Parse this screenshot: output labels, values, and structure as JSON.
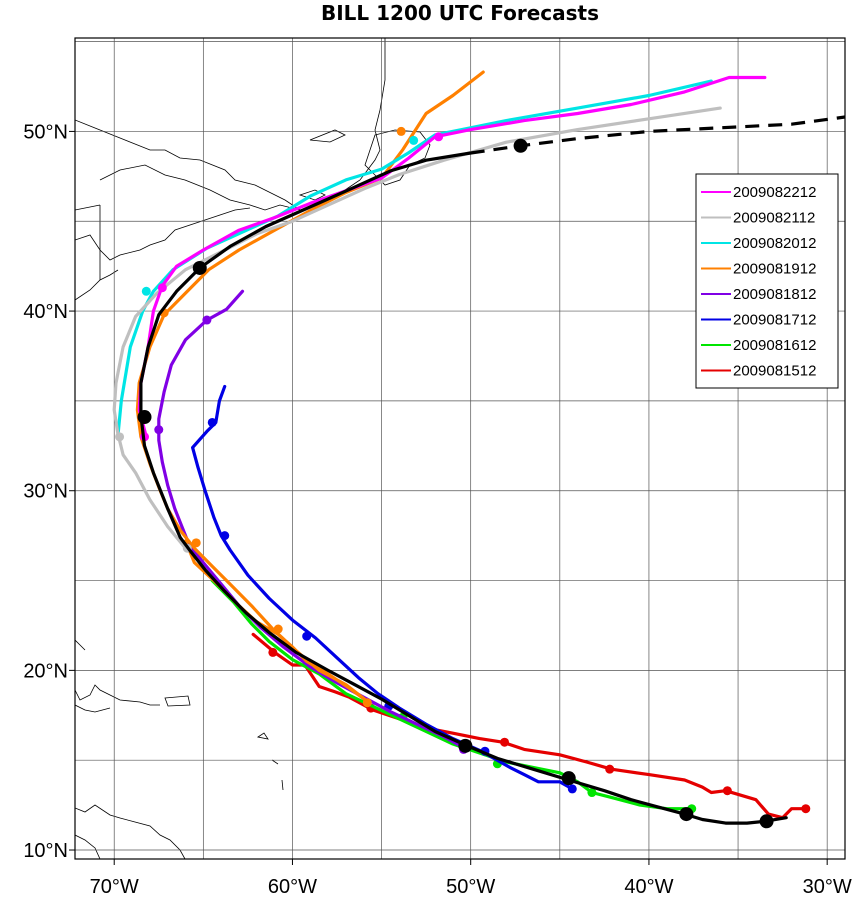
{
  "title": "BILL 1200 UTC Forecasts",
  "chart_data": {
    "type": "map-tracks",
    "title": "BILL 1200 UTC Forecasts",
    "lon_ticks": [
      {
        "lon": -70,
        "label": "70°W"
      },
      {
        "lon": -60,
        "label": "60°W"
      },
      {
        "lon": -50,
        "label": "50°W"
      },
      {
        "lon": -40,
        "label": "40°W"
      },
      {
        "lon": -30,
        "label": "30°W"
      }
    ],
    "lat_ticks": [
      {
        "lat": 10,
        "label": "10°N"
      },
      {
        "lat": 20,
        "label": "20°N"
      },
      {
        "lat": 30,
        "label": "30°N"
      },
      {
        "lat": 40,
        "label": "40°N"
      },
      {
        "lat": 50,
        "label": "50°N"
      }
    ],
    "lon_range": [
      -72.2,
      -29.0
    ],
    "lat_range": [
      9.5,
      55.2
    ],
    "grid": true,
    "grid_spacing_deg": 5,
    "legend_position": "right",
    "best_track": {
      "color": "#000000",
      "points": [
        [
          -32.3,
          11.8
        ],
        [
          -33.5,
          11.6
        ],
        [
          -34.5,
          11.5
        ],
        [
          -35.7,
          11.5
        ],
        [
          -37,
          11.7
        ],
        [
          -38,
          12
        ],
        [
          -39.5,
          12.4
        ],
        [
          -41,
          12.8
        ],
        [
          -42.5,
          13.3
        ],
        [
          -44.5,
          13.9
        ],
        [
          -46.5,
          14.5
        ],
        [
          -48.5,
          15.1
        ],
        [
          -50.2,
          15.8
        ],
        [
          -52,
          16.6
        ],
        [
          -53.5,
          17.5
        ],
        [
          -55,
          18.4
        ],
        [
          -56.5,
          19.2
        ],
        [
          -58,
          20
        ],
        [
          -59.8,
          21
        ],
        [
          -61.3,
          22.1
        ],
        [
          -62.6,
          23.2
        ],
        [
          -63.8,
          24.4
        ],
        [
          -64.9,
          25.6
        ],
        [
          -65.7,
          26.6
        ],
        [
          -66.3,
          27.4
        ],
        [
          -67,
          29
        ],
        [
          -67.8,
          31
        ],
        [
          -68.3,
          32.5
        ],
        [
          -68.5,
          34.2
        ],
        [
          -68.5,
          36
        ],
        [
          -68.1,
          38
        ],
        [
          -67.5,
          39.8
        ],
        [
          -66.5,
          41.1
        ],
        [
          -65.2,
          42.4
        ],
        [
          -63.5,
          43.6
        ],
        [
          -61.5,
          44.7
        ],
        [
          -59,
          45.8
        ],
        [
          -56.5,
          46.9
        ],
        [
          -54.5,
          47.8
        ],
        [
          -52.5,
          48.4
        ],
        [
          -50,
          48.8
        ]
      ],
      "dashed_points": [
        [
          -50,
          48.8
        ],
        [
          -47.2,
          49.2
        ],
        [
          -44,
          49.6
        ],
        [
          -40,
          50
        ],
        [
          -36,
          50.2
        ],
        [
          -32,
          50.4
        ],
        [
          -29,
          50.8
        ]
      ],
      "markers": [
        [
          -33.4,
          11.6
        ],
        [
          -37.9,
          12
        ],
        [
          -44.5,
          14
        ],
        [
          -50.3,
          15.8
        ],
        [
          -68.3,
          34.1
        ],
        [
          -65.2,
          42.4
        ],
        [
          -47.2,
          49.2
        ]
      ]
    },
    "series": [
      {
        "name": "2009082212",
        "color": "#ff00ff",
        "points": [
          [
            -68.2,
            33
          ],
          [
            -68.6,
            34.5
          ],
          [
            -68.5,
            36
          ],
          [
            -68.1,
            38
          ],
          [
            -67.8,
            40
          ],
          [
            -67.3,
            41.4
          ],
          [
            -66.5,
            42.5
          ],
          [
            -65,
            43.4
          ],
          [
            -63,
            44.5
          ],
          [
            -61,
            45.2
          ],
          [
            -59,
            46
          ],
          [
            -57,
            46.7
          ],
          [
            -55,
            47.4
          ],
          [
            -53.5,
            48.5
          ],
          [
            -52,
            49.7
          ],
          [
            -50,
            50.1
          ],
          [
            -47,
            50.6
          ],
          [
            -44,
            51
          ],
          [
            -41,
            51.5
          ],
          [
            -38,
            52.2
          ],
          [
            -35.5,
            53
          ],
          [
            -33.5,
            53
          ]
        ],
        "markers": [
          [
            -68.3,
            33
          ],
          [
            -67.3,
            41.3
          ],
          [
            -51.8,
            49.7
          ]
        ]
      },
      {
        "name": "2009082112",
        "color": "#bfbfbf",
        "points": [
          [
            -66,
            26.8
          ],
          [
            -67,
            28
          ],
          [
            -68,
            29.5
          ],
          [
            -68.8,
            31
          ],
          [
            -69.5,
            32
          ],
          [
            -69.8,
            33.2
          ],
          [
            -70,
            34.5
          ],
          [
            -69.9,
            36
          ],
          [
            -69.5,
            38
          ],
          [
            -68.8,
            39.7
          ],
          [
            -67.6,
            41
          ],
          [
            -66,
            42.3
          ],
          [
            -64,
            43.3
          ],
          [
            -62,
            44.3
          ],
          [
            -60,
            45
          ],
          [
            -58,
            45.9
          ],
          [
            -56,
            46.8
          ],
          [
            -54,
            47.6
          ],
          [
            -51.5,
            48.4
          ],
          [
            -48,
            49.4
          ],
          [
            -44,
            50.1
          ],
          [
            -40,
            50.7
          ],
          [
            -36,
            51.3
          ]
        ],
        "markers": [
          [
            -65.9,
            26.8
          ],
          [
            -69.7,
            33
          ]
        ]
      },
      {
        "name": "2009082012",
        "color": "#00e5e5",
        "points": [
          [
            -69.8,
            33
          ],
          [
            -69.6,
            35
          ],
          [
            -69.1,
            38
          ],
          [
            -68.4,
            40
          ],
          [
            -67.8,
            41.1
          ],
          [
            -66.7,
            42.3
          ],
          [
            -64.8,
            43.5
          ],
          [
            -62.8,
            44.4
          ],
          [
            -60.8,
            45.3
          ],
          [
            -59,
            46.4
          ],
          [
            -57,
            47.3
          ],
          [
            -55,
            47.9
          ],
          [
            -53.5,
            48.8
          ],
          [
            -52,
            49.8
          ],
          [
            -48,
            50.6
          ],
          [
            -44,
            51.3
          ],
          [
            -40,
            52
          ],
          [
            -36.5,
            52.8
          ]
        ],
        "markers": [
          [
            -68.2,
            41.1
          ],
          [
            -53.2,
            49.5
          ]
        ]
      },
      {
        "name": "2009081912",
        "color": "#ff8000",
        "points": [
          [
            -66,
            27.2
          ],
          [
            -65.5,
            26
          ],
          [
            -64.2,
            24.8
          ],
          [
            -63,
            23.6
          ],
          [
            -62,
            22.7
          ],
          [
            -60.8,
            22
          ],
          [
            -60,
            21.3
          ],
          [
            -59.2,
            20.5
          ],
          [
            -58,
            19.8
          ],
          [
            -56.8,
            19
          ],
          [
            -55.7,
            18.2
          ],
          [
            -57,
            19.2
          ],
          [
            -58.5,
            20
          ],
          [
            -59.8,
            21.1
          ],
          [
            -61.1,
            22.3
          ],
          [
            -62.3,
            23.6
          ],
          [
            -63.5,
            24.8
          ],
          [
            -64.5,
            25.8
          ],
          [
            -65.5,
            26.8
          ],
          [
            -66.3,
            27.8
          ],
          [
            -67,
            29
          ],
          [
            -67.5,
            30.2
          ],
          [
            -68,
            31.5
          ],
          [
            -68.5,
            33
          ],
          [
            -68.7,
            34.5
          ],
          [
            -68.6,
            36
          ],
          [
            -68,
            38
          ],
          [
            -67.2,
            39.8
          ],
          [
            -66,
            41
          ],
          [
            -64.7,
            42.3
          ],
          [
            -63,
            43.4
          ],
          [
            -61,
            44.5
          ],
          [
            -59,
            45.6
          ],
          [
            -57,
            46.6
          ],
          [
            -55,
            47.4
          ],
          [
            -53.8,
            49
          ],
          [
            -52.5,
            51
          ],
          [
            -51,
            52
          ],
          [
            -49.3,
            53.3
          ]
        ],
        "markers": [
          [
            -55.8,
            18.2
          ],
          [
            -60.8,
            22.3
          ],
          [
            -65.4,
            27.1
          ],
          [
            -67.2,
            39.9
          ],
          [
            -53.9,
            50
          ]
        ]
      },
      {
        "name": "2009081812",
        "color": "#8000e5",
        "points": [
          [
            -50.2,
            15.6
          ],
          [
            -51.5,
            16.3
          ],
          [
            -53,
            17
          ],
          [
            -54.5,
            17.7
          ],
          [
            -56,
            18.5
          ],
          [
            -57.5,
            19.3
          ],
          [
            -59,
            20.2
          ],
          [
            -60.5,
            21.3
          ],
          [
            -61.8,
            22.4
          ],
          [
            -63,
            23.6
          ],
          [
            -64,
            24.8
          ],
          [
            -65,
            26
          ],
          [
            -65.8,
            27
          ],
          [
            -66.2,
            28
          ],
          [
            -66.6,
            29
          ],
          [
            -67,
            30.3
          ],
          [
            -67.3,
            31.6
          ],
          [
            -67.5,
            32.8
          ],
          [
            -67.5,
            34
          ],
          [
            -67.2,
            35.5
          ],
          [
            -66.8,
            37
          ],
          [
            -66,
            38.4
          ],
          [
            -64.8,
            39.5
          ],
          [
            -63.7,
            40.1
          ],
          [
            -62.8,
            41.1
          ]
        ],
        "markers": [
          [
            -50.4,
            15.6
          ],
          [
            -67.5,
            33.4
          ],
          [
            -64.8,
            39.5
          ]
        ]
      },
      {
        "name": "2009081712",
        "color": "#0000e5",
        "points": [
          [
            -44.3,
            13.4
          ],
          [
            -45,
            13.8
          ],
          [
            -46.2,
            13.8
          ],
          [
            -47,
            14.2
          ],
          [
            -47.8,
            14.6
          ],
          [
            -49.4,
            15.5
          ],
          [
            -51,
            16.2
          ],
          [
            -52.5,
            17
          ],
          [
            -54,
            17.9
          ],
          [
            -55.2,
            18.7
          ],
          [
            -56.3,
            19.6
          ],
          [
            -57.5,
            20.7
          ],
          [
            -58.7,
            21.8
          ],
          [
            -60,
            22.8
          ],
          [
            -61.3,
            24
          ],
          [
            -62.5,
            25.3
          ],
          [
            -63.5,
            26.7
          ],
          [
            -64,
            27.5
          ],
          [
            -64.4,
            28.5
          ],
          [
            -64.9,
            30
          ],
          [
            -65.3,
            31.3
          ],
          [
            -65.6,
            32.4
          ],
          [
            -64.8,
            33.3
          ],
          [
            -64.3,
            33.8
          ],
          [
            -64.1,
            35
          ],
          [
            -63.8,
            35.8
          ]
        ],
        "markers": [
          [
            -44.3,
            13.4
          ],
          [
            -49.2,
            15.5
          ],
          [
            -54.6,
            18
          ],
          [
            -59.2,
            21.9
          ],
          [
            -63.8,
            27.5
          ],
          [
            -64.5,
            33.8
          ]
        ]
      },
      {
        "name": "2009081612",
        "color": "#00e500",
        "points": [
          [
            -37.6,
            12.3
          ],
          [
            -39,
            12.3
          ],
          [
            -40.5,
            12.5
          ],
          [
            -42,
            12.9
          ],
          [
            -43.2,
            13.2
          ],
          [
            -44,
            13.8
          ],
          [
            -45,
            14.3
          ],
          [
            -46.5,
            14.6
          ],
          [
            -48,
            14.9
          ],
          [
            -49.5,
            15.4
          ],
          [
            -51,
            15.9
          ],
          [
            -52.5,
            16.6
          ],
          [
            -54,
            17.3
          ],
          [
            -55.5,
            18
          ],
          [
            -57,
            18.7
          ],
          [
            -58.5,
            19.8
          ],
          [
            -60,
            20.6
          ],
          [
            -61.3,
            21.6
          ],
          [
            -62.3,
            22.6
          ],
          [
            -63.3,
            23.8
          ],
          [
            -64.5,
            25
          ]
        ],
        "markers": [
          [
            -37.6,
            12.3
          ],
          [
            -43.2,
            13.2
          ],
          [
            -48.5,
            14.8
          ],
          [
            -53.8,
            17.4
          ]
        ]
      },
      {
        "name": "2009081512",
        "color": "#e50000",
        "points": [
          [
            -31.2,
            12.3
          ],
          [
            -32,
            12.3
          ],
          [
            -32.5,
            11.8
          ],
          [
            -33.3,
            12
          ],
          [
            -34,
            12.8
          ],
          [
            -35.7,
            13.3
          ],
          [
            -36.5,
            13.2
          ],
          [
            -37,
            13.5
          ],
          [
            -38,
            13.9
          ],
          [
            -40,
            14.2
          ],
          [
            -42.1,
            14.5
          ],
          [
            -43.5,
            14.9
          ],
          [
            -45,
            15.3
          ],
          [
            -47,
            15.6
          ],
          [
            -48.2,
            16
          ],
          [
            -49.5,
            16.2
          ],
          [
            -51,
            16.5
          ],
          [
            -52.5,
            16.8
          ],
          [
            -54,
            17.3
          ],
          [
            -55.5,
            17.8
          ],
          [
            -56.8,
            18.5
          ],
          [
            -57.6,
            18.8
          ],
          [
            -58.5,
            19.1
          ],
          [
            -59.3,
            20.3
          ],
          [
            -60,
            20.3
          ],
          [
            -61,
            21
          ],
          [
            -62.2,
            22
          ]
        ],
        "markers": [
          [
            -31.2,
            12.3
          ],
          [
            -35.6,
            13.3
          ],
          [
            -42.2,
            14.5
          ],
          [
            -48.1,
            16
          ],
          [
            -55.6,
            17.9
          ],
          [
            -61.1,
            21
          ]
        ]
      }
    ]
  }
}
